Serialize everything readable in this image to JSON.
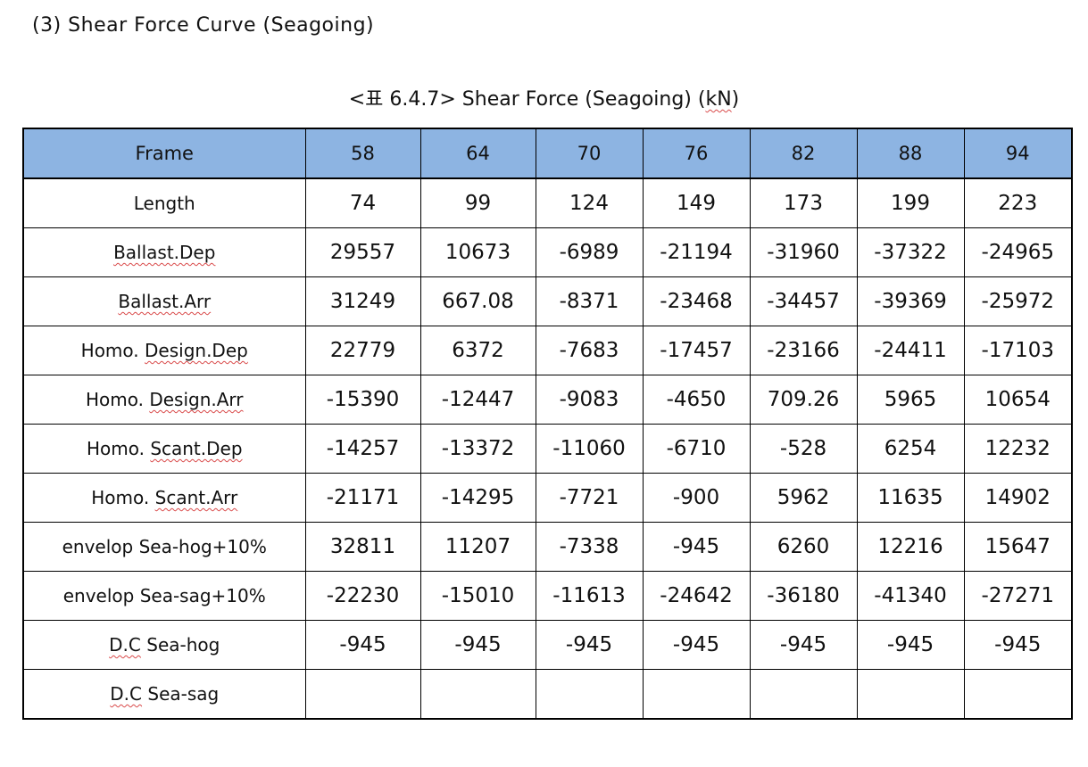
{
  "section_heading": "(3) Shear Force Curve (Seagoing)",
  "caption": {
    "prefix": "<표 6.4.7> Shear Force (Seagoing) (",
    "unit": "kN",
    "suffix": ")"
  },
  "table": {
    "header": [
      "Frame",
      "58",
      "64",
      "70",
      "76",
      "82",
      "88",
      "94"
    ],
    "rows": [
      {
        "label_parts": [
          "Length"
        ],
        "values": [
          "74",
          "99",
          "124",
          "149",
          "173",
          "199",
          "223"
        ]
      },
      {
        "label_parts": [
          "Ballast.Dep"
        ],
        "values": [
          "29557",
          "10673",
          "-6989",
          "-21194",
          "-31960",
          "-37322",
          "-24965"
        ]
      },
      {
        "label_parts": [
          "Ballast.Arr"
        ],
        "values": [
          "31249",
          "667.08",
          "-8371",
          "-23468",
          "-34457",
          "-39369",
          "-25972"
        ]
      },
      {
        "label_parts": [
          "Homo. ",
          "Design.Dep"
        ],
        "values": [
          "22779",
          "6372",
          "-7683",
          "-17457",
          "-23166",
          "-24411",
          "-17103"
        ]
      },
      {
        "label_parts": [
          "Homo. ",
          "Design.Arr"
        ],
        "values": [
          "-15390",
          "-12447",
          "-9083",
          "-4650",
          "709.26",
          "5965",
          "10654"
        ]
      },
      {
        "label_parts": [
          "Homo. ",
          "Scant.Dep"
        ],
        "values": [
          "-14257",
          "-13372",
          "-11060",
          "-6710",
          "-528",
          "6254",
          "12232"
        ]
      },
      {
        "label_parts": [
          "Homo. ",
          "Scant.Arr"
        ],
        "values": [
          "-21171",
          "-14295",
          "-7721",
          "-900",
          "5962",
          "11635",
          "14902"
        ]
      },
      {
        "label_parts": [
          "envelop Sea-hog+10%"
        ],
        "values": [
          "32811",
          "11207",
          "-7338",
          "-945",
          "6260",
          "12216",
          "15647"
        ]
      },
      {
        "label_parts": [
          "envelop Sea-sag+10%"
        ],
        "values": [
          "-22230",
          "-15010",
          "-11613",
          "-24642",
          "-36180",
          "-41340",
          "-27271"
        ]
      },
      {
        "label_parts": [
          "D.C",
          " Sea-hog"
        ],
        "values": [
          "-945",
          "-945",
          "-945",
          "-945",
          "-945",
          "-945",
          "-945"
        ]
      },
      {
        "label_parts": [
          "D.C",
          " Sea-sag"
        ],
        "values": [
          "",
          "",
          "",
          "",
          "",
          "",
          ""
        ]
      }
    ]
  },
  "colors": {
    "header_background": "#8db4e2",
    "spellcheck_underline": "#d94a4a"
  }
}
